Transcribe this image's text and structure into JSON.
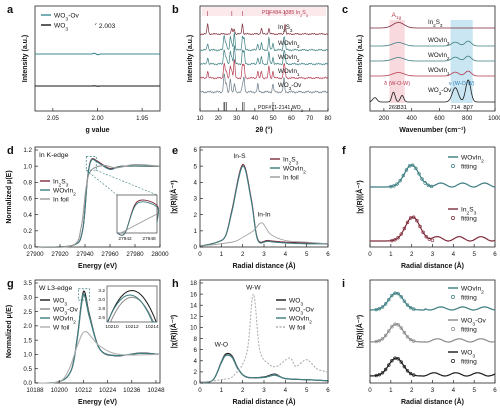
{
  "chart_data": [
    {
      "id": "a",
      "type": "line",
      "title": "",
      "xlabel": "g value",
      "ylabel": "Intensity (a.u.)",
      "xlim": [
        2.07,
        1.93
      ],
      "x_reversed": true,
      "xticks": [
        "2.05",
        "2.00",
        "1.95"
      ],
      "annotations": [
        "2.003"
      ],
      "series": [
        {
          "name": "WO3-Ov",
          "color": "#3e8a96",
          "points": [
            [
              2.07,
              0
            ],
            [
              2.012,
              0.02
            ],
            [
              2.006,
              0.18
            ],
            [
              2.003,
              1.0
            ],
            [
              2.0,
              -0.15
            ],
            [
              1.996,
              -0.55
            ],
            [
              1.99,
              -0.05
            ],
            [
              1.93,
              0
            ]
          ]
        },
        {
          "name": "WO3",
          "color": "#1a1a1a",
          "points": [
            [
              2.07,
              0
            ],
            [
              2.01,
              0.01
            ],
            [
              2.003,
              0.25
            ],
            [
              2.0,
              -0.05
            ],
            [
              1.997,
              -0.28
            ],
            [
              1.99,
              -0.02
            ],
            [
              1.93,
              0
            ]
          ]
        }
      ]
    },
    {
      "id": "b",
      "type": "line",
      "title": "",
      "xlabel": "2θ (°)",
      "ylabel": "Intensity (a.u.)",
      "xlim": [
        10,
        80
      ],
      "xticks": [
        "10",
        "20",
        "30",
        "40",
        "50",
        "60",
        "70",
        "80"
      ],
      "references": [
        "PDF#84-1385 In2S3",
        "PDF#71-2141 WO3"
      ],
      "series": [
        {
          "name": "In2S3",
          "color": "#7f2a3a"
        },
        {
          "name": "WOvIn3",
          "color": "#3b7d80"
        },
        {
          "name": "WOvIn2",
          "color": "#3b7d80"
        },
        {
          "name": "WOvIn1",
          "color": "#b43a50"
        },
        {
          "name": "WO3-Ov",
          "color": "#6b7a86"
        }
      ]
    },
    {
      "id": "c",
      "type": "line",
      "title": "",
      "xlabel": "Wavenumber (cm⁻¹)",
      "ylabel": "Intensity (a.u.)",
      "xlim": [
        100,
        1000
      ],
      "xticks": [
        "200",
        "400",
        "600",
        "800",
        "1000"
      ],
      "annotations": [
        "A1g",
        "ν (W-O-W)",
        "δ (W-O-W)",
        "269",
        "331",
        "714",
        "807"
      ],
      "series": [
        {
          "name": "In2S3",
          "color": "#7f2a3a"
        },
        {
          "name": "WOvIn3",
          "color": "#3b7d80"
        },
        {
          "name": "WOvIn2",
          "color": "#3b7d80"
        },
        {
          "name": "WOvIn1",
          "color": "#b43a50"
        },
        {
          "name": "WO3-Ov",
          "color": "#1a1a1a"
        }
      ]
    },
    {
      "id": "d",
      "type": "line",
      "title": "In K-edge",
      "xlabel": "Energy (eV)",
      "ylabel": "Normalized μ(E)",
      "xlim": [
        27900,
        28000
      ],
      "ylim": [
        0,
        1.2
      ],
      "xticks": [
        "27900",
        "27920",
        "27940",
        "27960",
        "27980",
        "28000"
      ],
      "yticks": [
        "0.0",
        "0.2",
        "0.4",
        "0.6",
        "0.8",
        "1.0",
        "1.2"
      ],
      "inset_xticks": [
        "27942",
        "27948"
      ],
      "series": [
        {
          "name": "In2S3",
          "color": "#7f2a3a",
          "points": [
            [
              27900,
              0
            ],
            [
              27930,
              0.02
            ],
            [
              27938,
              0.2
            ],
            [
              27942,
              0.85
            ],
            [
              27945,
              1.08
            ],
            [
              27950,
              1.06
            ],
            [
              27960,
              0.97
            ],
            [
              27970,
              1.0
            ],
            [
              28000,
              1.0
            ]
          ]
        },
        {
          "name": "WOvIn2",
          "color": "#3b7d80",
          "points": [
            [
              27900,
              0
            ],
            [
              27930,
              0.02
            ],
            [
              27938,
              0.2
            ],
            [
              27942,
              0.84
            ],
            [
              27945,
              1.07
            ],
            [
              27950,
              1.05
            ],
            [
              27960,
              0.96
            ],
            [
              27970,
              1.0
            ],
            [
              28000,
              1.0
            ]
          ]
        },
        {
          "name": "In foil",
          "color": "#9a9a9a",
          "points": [
            [
              27900,
              0
            ],
            [
              27930,
              0.02
            ],
            [
              27937,
              0.25
            ],
            [
              27941,
              0.75
            ],
            [
              27945,
              0.95
            ],
            [
              27955,
              1.01
            ],
            [
              27965,
              0.98
            ],
            [
              27980,
              1.02
            ],
            [
              28000,
              1.0
            ]
          ]
        }
      ]
    },
    {
      "id": "e",
      "type": "line",
      "title": "",
      "xlabel": "Radial distance (Å)",
      "ylabel": "|χ(R)|(Å⁻³)",
      "xlim": [
        0,
        6
      ],
      "ylim": [
        0,
        6
      ],
      "xticks": [
        "0",
        "1",
        "2",
        "3",
        "4",
        "5",
        "6"
      ],
      "yticks": [
        "0",
        "1",
        "2",
        "3",
        "4",
        "5",
        "6"
      ],
      "annotations": [
        "In-S",
        "In-In"
      ],
      "series": [
        {
          "name": "In2S3",
          "color": "#7f2a3a",
          "points": [
            [
              0,
              0.05
            ],
            [
              0.8,
              0.3
            ],
            [
              1.2,
              0.7
            ],
            [
              1.5,
              2.3
            ],
            [
              2.0,
              5.1
            ],
            [
              2.4,
              3.0
            ],
            [
              2.7,
              0.5
            ],
            [
              3.2,
              0.4
            ],
            [
              4,
              0.3
            ],
            [
              5,
              0.25
            ],
            [
              6,
              0.2
            ]
          ]
        },
        {
          "name": "WOvIn2",
          "color": "#3b7d80",
          "points": [
            [
              0,
              0.05
            ],
            [
              0.8,
              0.3
            ],
            [
              1.2,
              0.7
            ],
            [
              1.5,
              2.2
            ],
            [
              2.0,
              5.0
            ],
            [
              2.4,
              2.9
            ],
            [
              2.7,
              0.45
            ],
            [
              3.2,
              0.35
            ],
            [
              4,
              0.25
            ],
            [
              5,
              0.2
            ],
            [
              6,
              0.2
            ]
          ]
        },
        {
          "name": "In foil",
          "color": "#9a9a9a",
          "points": [
            [
              0,
              0.05
            ],
            [
              1.5,
              0.3
            ],
            [
              2.0,
              0.6
            ],
            [
              2.5,
              1.0
            ],
            [
              2.9,
              1.5
            ],
            [
              3.3,
              0.8
            ],
            [
              4,
              0.4
            ],
            [
              5,
              0.3
            ],
            [
              6,
              0.2
            ]
          ]
        }
      ]
    },
    {
      "id": "f",
      "type": "line",
      "title": "",
      "xlabel": "Radial distance (Å)",
      "ylabel": "|χ(R)|(Å⁻³)",
      "xlim": [
        0,
        6
      ],
      "xticks": [
        "0",
        "1",
        "2",
        "3",
        "4",
        "5",
        "6"
      ],
      "series": [
        {
          "name": "WOvIn2",
          "color": "#3b7d80"
        },
        {
          "name": "fitting",
          "color": "#3b7d80"
        },
        {
          "name": "In2S3",
          "color": "#7f2a3a"
        },
        {
          "name": "fitting",
          "color": "#7f2a3a"
        }
      ]
    },
    {
      "id": "g",
      "type": "line",
      "title": "W L3-edge",
      "xlabel": "Energy (eV)",
      "ylabel": "Normalized μ(E)",
      "xlim": [
        10188,
        10250
      ],
      "ylim": [
        0,
        3.5
      ],
      "xticks": [
        "10188",
        "10200",
        "10212",
        "10224",
        "10236",
        "10248"
      ],
      "yticks": [
        "0.0",
        "0.5",
        "1.0",
        "1.5",
        "2.0",
        "2.5",
        "3.0",
        "3.5"
      ],
      "inset_xticks": [
        "10210",
        "10212",
        "10214"
      ],
      "inset_yticks": [
        "2.6",
        "2.8",
        "3.0",
        "3.2"
      ],
      "series": [
        {
          "name": "WO3",
          "color": "#1a1a1a",
          "points": [
            [
              10188,
              0
            ],
            [
              10200,
              0.05
            ],
            [
              10206,
              0.45
            ],
            [
              10209,
              1.6
            ],
            [
              10212,
              3.2
            ],
            [
              10215,
              2.4
            ],
            [
              10220,
              1.2
            ],
            [
              10228,
              0.95
            ],
            [
              10240,
              1.05
            ],
            [
              10250,
              1.0
            ]
          ]
        },
        {
          "name": "WO3-Ov",
          "color": "#8a8a8a",
          "points": [
            [
              10188,
              0
            ],
            [
              10200,
              0.05
            ],
            [
              10206,
              0.45
            ],
            [
              10209,
              1.55
            ],
            [
              10212,
              3.05
            ],
            [
              10215,
              2.35
            ],
            [
              10220,
              1.2
            ],
            [
              10228,
              0.96
            ],
            [
              10240,
              1.04
            ],
            [
              10250,
              1.0
            ]
          ]
        },
        {
          "name": "WOvIn2",
          "color": "#3b7d80",
          "points": [
            [
              10188,
              0
            ],
            [
              10200,
              0.05
            ],
            [
              10206,
              0.45
            ],
            [
              10209,
              1.55
            ],
            [
              10211.8,
              3.1
            ],
            [
              10215,
              2.3
            ],
            [
              10220,
              1.2
            ],
            [
              10228,
              0.96
            ],
            [
              10240,
              1.04
            ],
            [
              10250,
              1.0
            ]
          ]
        },
        {
          "name": "W foil",
          "color": "#b0b0b0",
          "points": [
            [
              10188,
              0
            ],
            [
              10200,
              0.05
            ],
            [
              10205,
              0.5
            ],
            [
              10209,
              1.3
            ],
            [
              10213,
              1.8
            ],
            [
              10220,
              1.3
            ],
            [
              10230,
              1.0
            ],
            [
              10250,
              1.0
            ]
          ]
        }
      ]
    },
    {
      "id": "h",
      "type": "line",
      "title": "",
      "xlabel": "Radial distance (Å)",
      "ylabel": "|χ(R)|(Å⁻³)",
      "xlim": [
        0,
        6
      ],
      "ylim": [
        0,
        18
      ],
      "xticks": [
        "0",
        "1",
        "2",
        "3",
        "4",
        "5",
        "6"
      ],
      "yticks": [
        "0",
        "2",
        "4",
        "6",
        "8",
        "10",
        "12",
        "14",
        "16",
        "18"
      ],
      "annotations": [
        "W-O",
        "W-W"
      ],
      "series": [
        {
          "name": "WO3",
          "color": "#1a1a1a",
          "points": [
            [
              0,
              0.1
            ],
            [
              0.6,
              0.5
            ],
            [
              1.0,
              3.8
            ],
            [
              1.2,
              5.2
            ],
            [
              1.5,
              4.9
            ],
            [
              1.8,
              2.5
            ],
            [
              2.2,
              1.0
            ],
            [
              3,
              1.1
            ],
            [
              3.5,
              1.6
            ],
            [
              4,
              0.8
            ],
            [
              5,
              0.6
            ],
            [
              6,
              0.4
            ]
          ]
        },
        {
          "name": "WO3-Ov",
          "color": "#8a8a8a",
          "points": [
            [
              0,
              0.1
            ],
            [
              0.6,
              0.5
            ],
            [
              1.0,
              3.7
            ],
            [
              1.2,
              5.0
            ],
            [
              1.5,
              4.7
            ],
            [
              1.8,
              2.4
            ],
            [
              2.2,
              1.0
            ],
            [
              3,
              1.0
            ],
            [
              3.5,
              1.5
            ],
            [
              4,
              0.8
            ],
            [
              5,
              0.6
            ],
            [
              6,
              0.4
            ]
          ]
        },
        {
          "name": "WOvIn2",
          "color": "#3b7d80",
          "points": [
            [
              0,
              0.1
            ],
            [
              0.6,
              0.5
            ],
            [
              1.0,
              3.6
            ],
            [
              1.2,
              4.9
            ],
            [
              1.5,
              4.6
            ],
            [
              1.8,
              2.4
            ],
            [
              2.2,
              1.1
            ],
            [
              3,
              1.0
            ],
            [
              3.5,
              1.4
            ],
            [
              4,
              0.8
            ],
            [
              5,
              0.6
            ],
            [
              6,
              0.4
            ]
          ]
        },
        {
          "name": "W foil",
          "color": "#b0b0b0",
          "points": [
            [
              0,
              0.1
            ],
            [
              1.0,
              0.6
            ],
            [
              1.6,
              1.4
            ],
            [
              2.2,
              5.5
            ],
            [
              2.5,
              16.0
            ],
            [
              2.8,
              6.0
            ],
            [
              3.2,
              3.5
            ],
            [
              3.6,
              3.0
            ],
            [
              4.2,
              4.5
            ],
            [
              4.5,
              3.0
            ],
            [
              5.0,
              4.2
            ],
            [
              5.5,
              2.5
            ],
            [
              6,
              2.0
            ]
          ]
        }
      ]
    },
    {
      "id": "i",
      "type": "line",
      "title": "",
      "xlabel": "Radial distance (Å)",
      "ylabel": "|χ(R)|(Å⁻³)",
      "xlim": [
        0,
        6
      ],
      "xticks": [
        "0",
        "1",
        "2",
        "3",
        "4",
        "5",
        "6"
      ],
      "series": [
        {
          "name": "WOvIn2",
          "color": "#3b7d80"
        },
        {
          "name": "fitting",
          "color": "#3b7d80"
        },
        {
          "name": "WO3-Ov",
          "color": "#8a8a8a"
        },
        {
          "name": "fitting",
          "color": "#8a8a8a"
        },
        {
          "name": "WO3",
          "color": "#1a1a1a"
        },
        {
          "name": "fitting",
          "color": "#1a1a1a"
        }
      ]
    }
  ]
}
